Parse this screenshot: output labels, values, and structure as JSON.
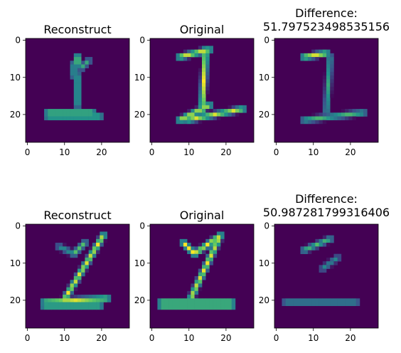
{
  "chart_data": [
    {
      "type": "heatmap",
      "row": 0,
      "col": 0,
      "title": "Reconstruct",
      "xticks": [
        "0",
        "10",
        "20"
      ],
      "yticks": [
        "0",
        "10",
        "20"
      ],
      "xlim": [
        0,
        28
      ],
      "ylim": [
        28,
        0
      ],
      "colormap": "viridis",
      "shape": [
        28,
        28
      ],
      "strokes": [
        [
          14,
          5,
          14,
          7,
          1
        ],
        [
          13,
          7,
          13,
          10,
          0.7
        ],
        [
          14,
          10,
          14,
          18,
          0.75
        ],
        [
          6,
          20,
          18,
          20,
          0.95
        ],
        [
          6,
          21,
          20,
          21,
          0.85
        ],
        [
          15,
          8,
          17,
          6,
          0.6
        ]
      ]
    },
    {
      "type": "heatmap",
      "row": 0,
      "col": 1,
      "title": "Original",
      "xticks": [
        "0",
        "10",
        "20"
      ],
      "yticks": [
        "0",
        "10",
        "20"
      ],
      "xlim": [
        0,
        28
      ],
      "ylim": [
        28,
        0
      ],
      "colormap": "viridis",
      "shape": [
        28,
        28
      ],
      "strokes": [
        [
          8,
          5,
          16,
          3,
          1
        ],
        [
          15,
          3,
          14,
          20,
          1
        ],
        [
          8,
          22,
          16,
          18,
          1
        ],
        [
          10,
          22,
          25,
          19,
          0.95
        ]
      ]
    },
    {
      "type": "heatmap",
      "row": 0,
      "col": 2,
      "title": "Difference:\n51.797523498535156",
      "title_lines": [
        "Difference:",
        "51.797523498535156"
      ],
      "xticks": [
        "0",
        "10",
        "20"
      ],
      "yticks": [
        "0",
        "10",
        "20"
      ],
      "xlim": [
        0,
        28
      ],
      "ylim": [
        28,
        0
      ],
      "colormap": "viridis",
      "shape": [
        28,
        28
      ],
      "strokes": [
        [
          8,
          5,
          14,
          4,
          1
        ],
        [
          15,
          5,
          14,
          20,
          0.6
        ],
        [
          8,
          22,
          24,
          20,
          0.7
        ]
      ]
    },
    {
      "type": "heatmap",
      "row": 1,
      "col": 0,
      "title": "Reconstruct",
      "xticks": [
        "0",
        "10",
        "20"
      ],
      "yticks": [
        "0",
        "10",
        "20"
      ],
      "xlim": [
        0,
        28
      ],
      "ylim": [
        28,
        0
      ],
      "colormap": "viridis",
      "shape": [
        28,
        28
      ],
      "strokes": [
        [
          9,
          6,
          13,
          8,
          0.55
        ],
        [
          13,
          8,
          16,
          5,
          0.7
        ],
        [
          21,
          3,
          10,
          21,
          1
        ],
        [
          5,
          21,
          22,
          20,
          0.95
        ],
        [
          5,
          22,
          20,
          22,
          0.9
        ]
      ]
    },
    {
      "type": "heatmap",
      "row": 1,
      "col": 1,
      "title": "Original",
      "xticks": [
        "0",
        "10",
        "20"
      ],
      "yticks": [
        "0",
        "10",
        "20"
      ],
      "xlim": [
        0,
        28
      ],
      "ylim": [
        28,
        0
      ],
      "colormap": "viridis",
      "shape": [
        28,
        28
      ],
      "strokes": [
        [
          9,
          5,
          12,
          8,
          1
        ],
        [
          12,
          8,
          19,
          3,
          1
        ],
        [
          19,
          3,
          11,
          20,
          1
        ],
        [
          3,
          21,
          22,
          21,
          1
        ],
        [
          3,
          22,
          22,
          22,
          1
        ]
      ]
    },
    {
      "type": "heatmap",
      "row": 1,
      "col": 2,
      "title": "Difference:\n50.987281799316406",
      "title_lines": [
        "Difference:",
        "50.987281799316406"
      ],
      "xticks": [
        "0",
        "10",
        "20"
      ],
      "yticks": [
        "0",
        "10",
        "20"
      ],
      "xlim": [
        0,
        28
      ],
      "ylim": [
        28,
        0
      ],
      "colormap": "viridis",
      "shape": [
        28,
        28
      ],
      "strokes": [
        [
          8,
          7,
          15,
          4,
          0.7
        ],
        [
          13,
          12,
          17,
          9,
          0.5
        ],
        [
          3,
          21,
          22,
          21,
          0.6
        ]
      ]
    }
  ]
}
